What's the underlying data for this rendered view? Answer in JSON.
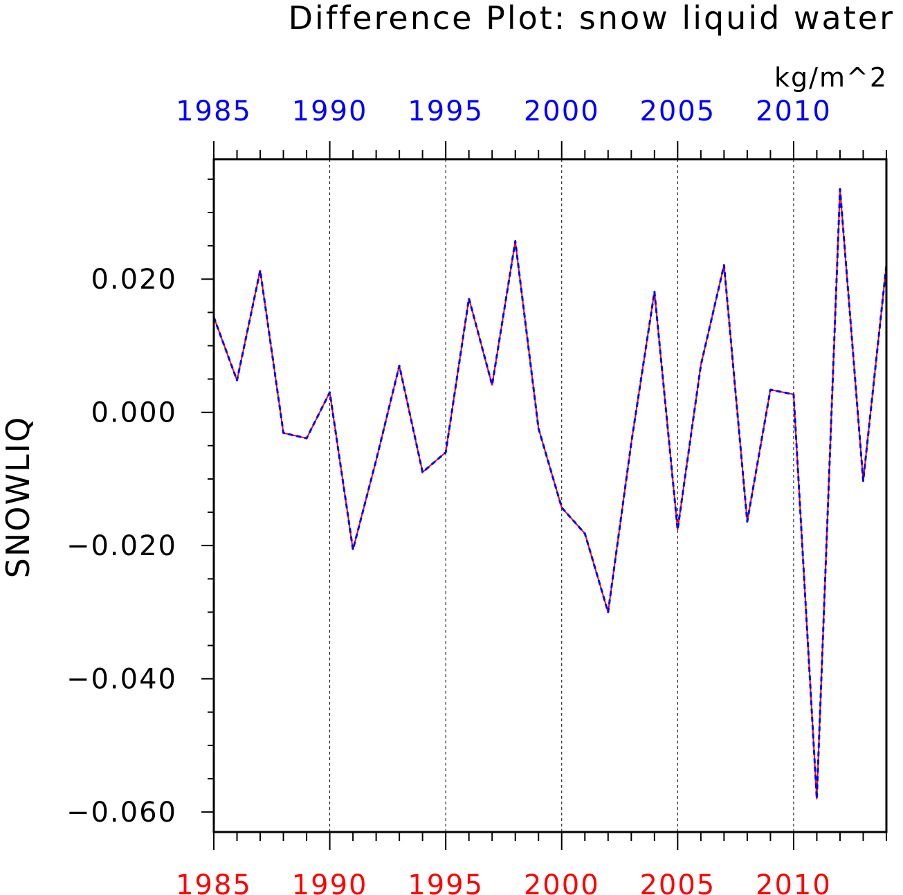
{
  "chart_data": {
    "type": "line",
    "title": "Difference Plot: snow liquid water",
    "units": "kg/m^2",
    "ylabel": "SNOWLIQ",
    "xlabel": "",
    "xlim": [
      1985,
      2014
    ],
    "ylim": [
      -0.063,
      0.038
    ],
    "grid": "vertical dashed lines at major x ticks",
    "x_major_ticks": [
      1985,
      1990,
      1995,
      2000,
      2005,
      2010
    ],
    "x_tick_labels": [
      "1985",
      "1990",
      "1995",
      "2000",
      "2005",
      "2010"
    ],
    "y_major_ticks": [
      0.02,
      0.0,
      -0.02,
      -0.04,
      -0.06
    ],
    "y_tick_labels": [
      "0.020",
      "0.000",
      "−0.020",
      "−0.040",
      "−0.060"
    ],
    "y_minor_tick_step": 0.005,
    "top_axis_color": "#0000ff",
    "bottom_axis_color": "#ff0000",
    "x": [
      1985,
      1986,
      1987,
      1988,
      1989,
      1990,
      1991,
      1992,
      1993,
      1994,
      1995,
      1996,
      1997,
      1998,
      1999,
      2000,
      2001,
      2002,
      2003,
      2004,
      2005,
      2006,
      2007,
      2008,
      2009,
      2010,
      2011,
      2012,
      2013,
      2014
    ],
    "series": [
      {
        "color": "#ff0000",
        "style": "solid",
        "values": [
          0.0143,
          0.0048,
          0.0213,
          -0.0031,
          -0.0039,
          0.003,
          -0.0206,
          -0.0072,
          0.007,
          -0.009,
          -0.006,
          0.0171,
          0.0041,
          0.0257,
          -0.0024,
          -0.0143,
          -0.0182,
          -0.03,
          -0.0046,
          0.0181,
          -0.0176,
          0.0071,
          0.0221,
          -0.0164,
          0.0034,
          0.0027,
          -0.058,
          0.0335,
          -0.0103,
          0.0221
        ]
      },
      {
        "color": "#0000ff",
        "style": "dashed",
        "values": [
          0.0143,
          0.0048,
          0.0213,
          -0.0031,
          -0.0039,
          0.003,
          -0.0206,
          -0.0072,
          0.007,
          -0.009,
          -0.006,
          0.0171,
          0.0041,
          0.0257,
          -0.0024,
          -0.0143,
          -0.0182,
          -0.03,
          -0.0046,
          0.0181,
          -0.0176,
          0.0071,
          0.0221,
          -0.0164,
          0.0034,
          0.0027,
          -0.058,
          0.0335,
          -0.0103,
          0.0221
        ]
      }
    ]
  }
}
